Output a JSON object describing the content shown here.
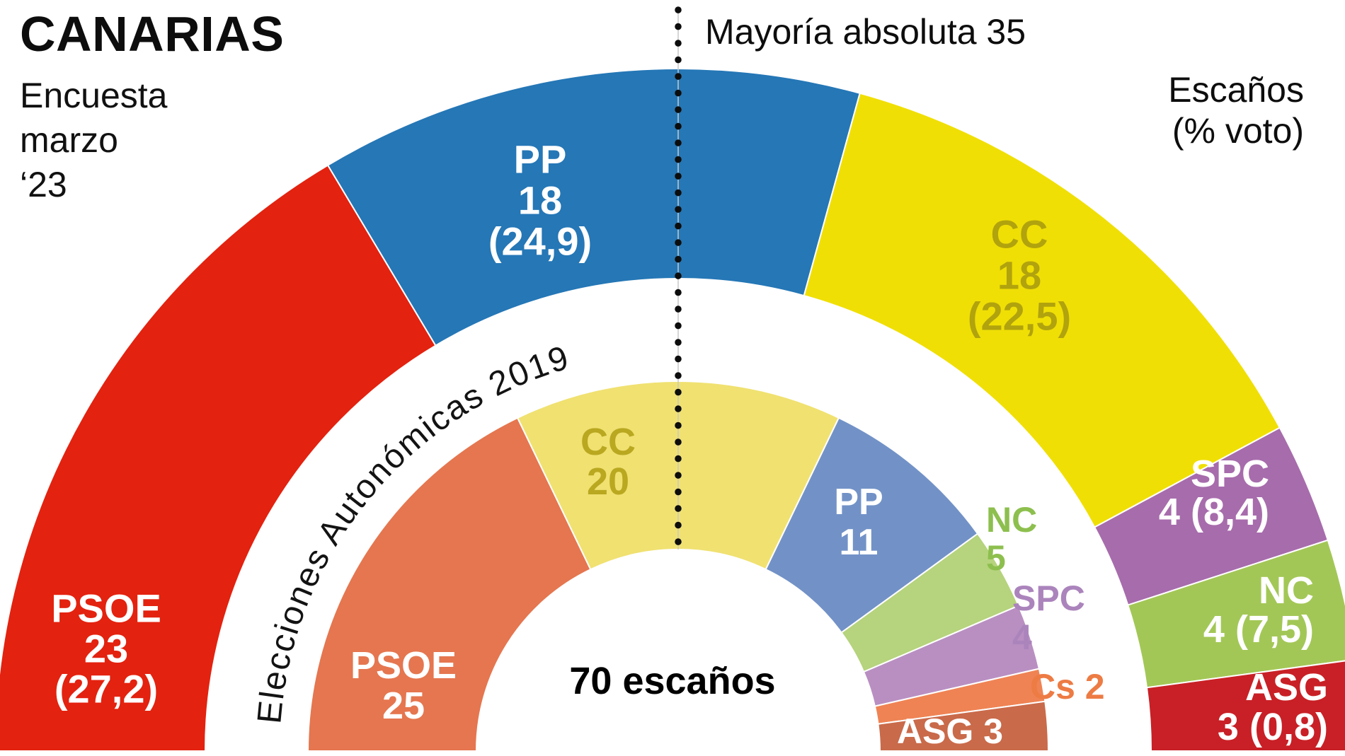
{
  "header": {
    "title": "CANARIAS",
    "subtitle_lines": [
      "Encuesta",
      "marzo",
      "‘23"
    ]
  },
  "annotations": {
    "majority_label": "Mayoría absoluta 35",
    "seats_note_lines": [
      "Escaños",
      "(% voto)"
    ],
    "total_label": "70 escaños",
    "inner_series_label": "Elecciones Autonómicas 2019"
  },
  "chart_data": {
    "type": "pie",
    "layout": "hemicycle half-donut, two concentric rings, flat edge at bottom, majority marker dotted vertical line at center",
    "total_seats": 70,
    "majority": 35,
    "series": [
      {
        "name": "Encuesta marzo ‘23",
        "ring": "outer",
        "segments": [
          {
            "party": "PSOE",
            "seats": 23,
            "pct": "27,2",
            "color": "#e3220f",
            "label_lines": [
              "PSOE",
              "23",
              "(27,2)"
            ],
            "label_color": "#ffffff"
          },
          {
            "party": "PP",
            "seats": 18,
            "pct": "24,9",
            "color": "#2577b6",
            "label_lines": [
              "PP",
              "18",
              "(24,9)"
            ],
            "label_color": "#ffffff"
          },
          {
            "party": "CC",
            "seats": 18,
            "pct": "22,5",
            "color": "#f0df05",
            "label_lines": [
              "CC",
              "18",
              "(22,5)"
            ],
            "label_color": "#b1a30d"
          },
          {
            "party": "SPC",
            "seats": 4,
            "pct": "8,4",
            "color": "#a76cac",
            "label_lines": [
              "SPC",
              "4 (8,4)"
            ],
            "label_color": "#ffffff"
          },
          {
            "party": "NC",
            "seats": 4,
            "pct": "7,5",
            "color": "#a3c756",
            "label_lines": [
              "NC",
              "4 (7,5)"
            ],
            "label_color": "#ffffff"
          },
          {
            "party": "ASG",
            "seats": 3,
            "pct": "0,8",
            "color": "#c82026",
            "label_lines": [
              "ASG",
              "3 (0,8)"
            ],
            "label_color": "#ffffff"
          }
        ]
      },
      {
        "name": "Elecciones Autonómicas 2019",
        "ring": "inner",
        "segments": [
          {
            "party": "PSOE",
            "seats": 25,
            "color": "#e5764f",
            "label_lines": [
              "PSOE",
              "25"
            ],
            "label_color": "#ffffff"
          },
          {
            "party": "CC",
            "seats": 20,
            "color": "#f0e171",
            "label_lines": [
              "CC",
              "20"
            ],
            "label_color": "#b9a820"
          },
          {
            "party": "PP",
            "seats": 11,
            "color": "#7292c7",
            "label_lines": [
              "PP",
              "11"
            ],
            "label_color": "#ffffff"
          },
          {
            "party": "NC",
            "seats": 5,
            "color": "#b6d37d",
            "label_lines": [
              "NC",
              "5"
            ],
            "label_color": "#8dbf4e"
          },
          {
            "party": "SPC",
            "seats": 4,
            "color": "#b98fc2",
            "label_lines": [
              "SPC",
              "4"
            ],
            "label_color": "#ab84bc"
          },
          {
            "party": "Cs",
            "seats": 2,
            "color": "#ef8354",
            "label_lines": [
              "Cs 2"
            ],
            "label_color": "#ed7b44"
          },
          {
            "party": "ASG",
            "seats": 3,
            "color": "#c96a4a",
            "label_lines": [
              "ASG 3"
            ],
            "label_color": "#ffffff"
          }
        ]
      }
    ]
  }
}
